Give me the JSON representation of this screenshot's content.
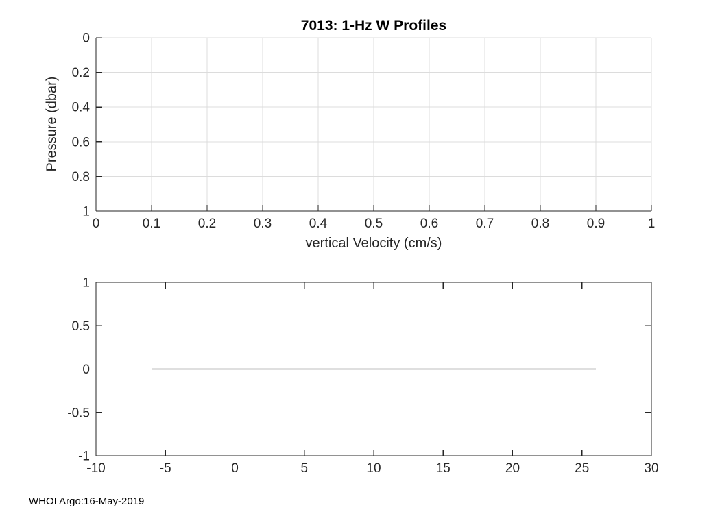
{
  "figure": {
    "footer": "WHOI Argo:16-May-2019"
  },
  "colors": {
    "background": "#ffffff",
    "spine": "#262626",
    "grid": "#dcdcdc",
    "tick_label": "#262626",
    "line": "#000000"
  },
  "chart_data": [
    {
      "id": "w-profiles-pressure",
      "type": "line",
      "title": "7013: 1-Hz W Profiles",
      "xlabel": "vertical Velocity (cm/s)",
      "ylabel": "Pressure (dbar)",
      "xlim": [
        0,
        1
      ],
      "ylim": [
        0,
        1
      ],
      "y_reversed": true,
      "grid": true,
      "box": false,
      "xtick_values": [
        0,
        0.1,
        0.2,
        0.3,
        0.4,
        0.5,
        0.6,
        0.7,
        0.8,
        0.9,
        1
      ],
      "xtick_labels": [
        "0",
        "0.1",
        "0.2",
        "0.3",
        "0.4",
        "0.5",
        "0.6",
        "0.7",
        "0.8",
        "0.9",
        "1"
      ],
      "ytick_values": [
        0,
        0.2,
        0.4,
        0.6,
        0.8,
        1
      ],
      "ytick_labels": [
        "0",
        "0.2",
        "0.4",
        "0.6",
        "0.8",
        "1"
      ],
      "series": []
    },
    {
      "id": "w-zero-line",
      "type": "line",
      "title": "",
      "xlabel": "",
      "ylabel": "",
      "xlim": [
        -10,
        30
      ],
      "ylim": [
        -1,
        1
      ],
      "y_reversed": false,
      "grid": false,
      "box": true,
      "xtick_values": [
        -10,
        -5,
        0,
        5,
        10,
        15,
        20,
        25,
        30
      ],
      "xtick_labels": [
        "-10",
        "-5",
        "0",
        "5",
        "10",
        "15",
        "20",
        "25",
        "30"
      ],
      "ytick_values": [
        -1,
        -0.5,
        0,
        0.5,
        1
      ],
      "ytick_labels": [
        "-1",
        "-0.5",
        "0",
        "0.5",
        "1"
      ],
      "series": [
        {
          "name": "zero-velocity-line",
          "color": "#000000",
          "x": [
            -6,
            26
          ],
          "y": [
            0,
            0
          ]
        }
      ]
    }
  ]
}
